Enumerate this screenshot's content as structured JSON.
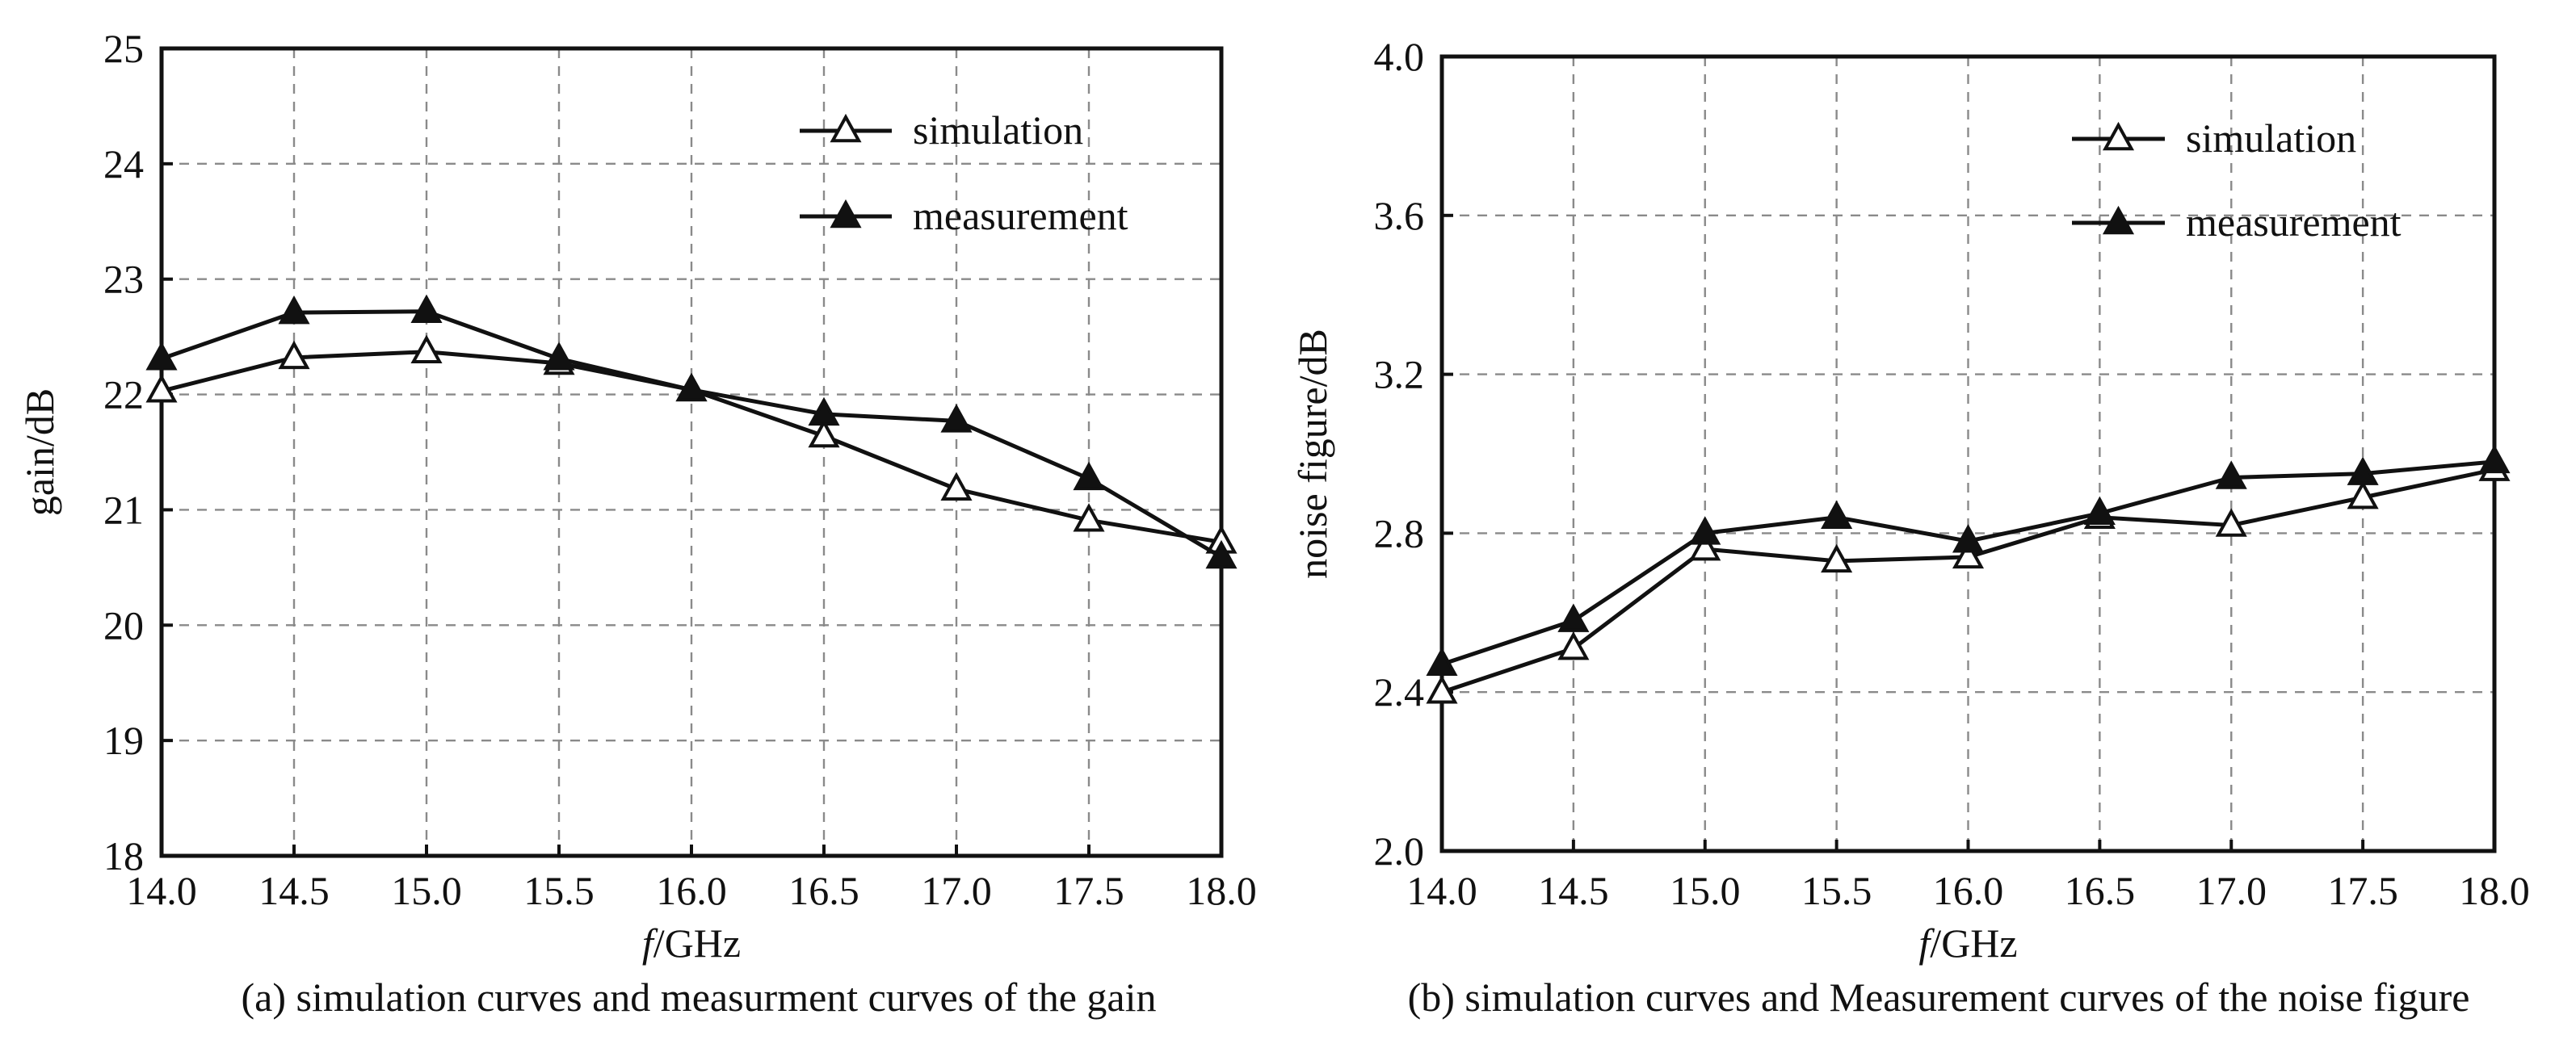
{
  "chart_data": [
    {
      "type": "line",
      "title": "",
      "caption": "(a) simulation curves and measurment curves of the gain",
      "xlabel_italic": "f",
      "xlabel_rest": "/GHz",
      "ylabel": "gain/dB",
      "xlim": [
        14.0,
        18.0
      ],
      "ylim": [
        18,
        25
      ],
      "x_ticks": [
        "14.0",
        "14.5",
        "15.0",
        "15.5",
        "16.0",
        "16.5",
        "17.0",
        "17.5",
        "18.0"
      ],
      "y_ticks": [
        "18",
        "19",
        "20",
        "21",
        "22",
        "23",
        "24",
        "25"
      ],
      "grid": true,
      "legend_position": "top-right",
      "x": [
        14.0,
        14.5,
        15.0,
        15.5,
        16.0,
        16.5,
        17.0,
        17.5,
        18.0
      ],
      "series": [
        {
          "name": "simulation",
          "marker": "open-triangle",
          "values": [
            22.03,
            22.32,
            22.37,
            22.27,
            22.04,
            21.64,
            21.18,
            20.91,
            20.72
          ]
        },
        {
          "name": "measurement",
          "marker": "filled-triangle",
          "values": [
            22.31,
            22.71,
            22.72,
            22.31,
            22.04,
            21.83,
            21.77,
            21.27,
            20.59
          ]
        }
      ]
    },
    {
      "type": "line",
      "title": "",
      "caption": "(b) simulation curves and Measurement curves of the noise figure",
      "xlabel_italic": "f",
      "xlabel_rest": "/GHz",
      "ylabel": "noise figure/dB",
      "xlim": [
        14.0,
        18.0
      ],
      "ylim": [
        2.0,
        4.0
      ],
      "x_ticks": [
        "14.0",
        "14.5",
        "15.0",
        "15.5",
        "16.0",
        "16.5",
        "17.0",
        "17.5",
        "18.0"
      ],
      "y_ticks": [
        "2.0",
        "2.4",
        "2.8",
        "3.2",
        "3.6",
        "4.0"
      ],
      "grid": true,
      "legend_position": "top-right",
      "x": [
        14.0,
        14.5,
        15.0,
        15.5,
        16.0,
        16.5,
        17.0,
        17.5,
        18.0
      ],
      "series": [
        {
          "name": "simulation",
          "marker": "open-triangle",
          "values": [
            2.4,
            2.51,
            2.76,
            2.73,
            2.74,
            2.84,
            2.82,
            2.89,
            2.96
          ]
        },
        {
          "name": "measurement",
          "marker": "filled-triangle",
          "values": [
            2.47,
            2.58,
            2.8,
            2.84,
            2.78,
            2.85,
            2.94,
            2.95,
            2.98
          ]
        }
      ]
    }
  ]
}
